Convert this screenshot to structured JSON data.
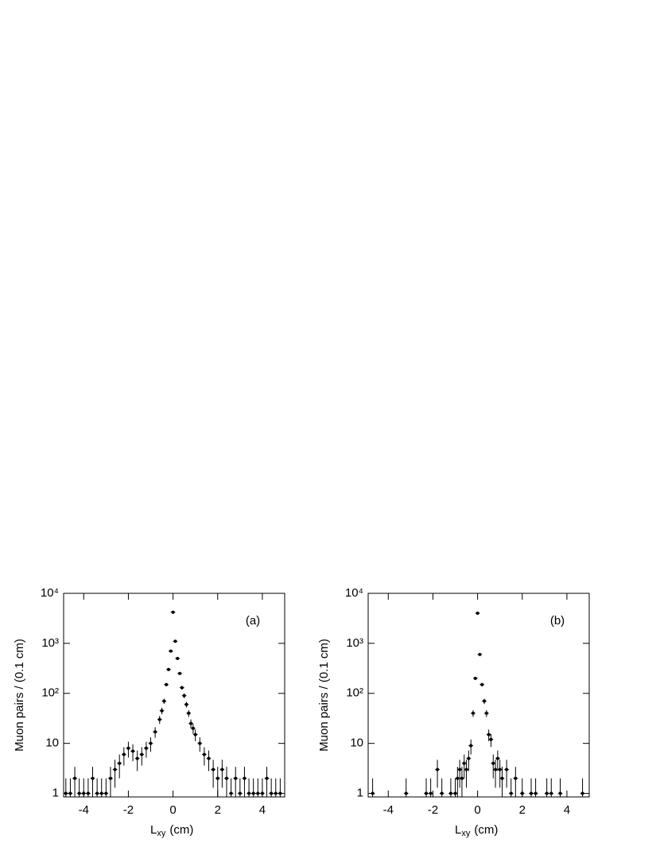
{
  "chart_data": [
    {
      "type": "scatter",
      "annotation": "(a)",
      "y_label": "Muon pairs / (0.1 cm)",
      "x_label_main": "L",
      "x_label_sub": "xy",
      "x_label_unit": "(cm)",
      "log_y": true,
      "color": "#000000",
      "xlim": [
        -4.9,
        5.0
      ],
      "xticks": [
        -4,
        -2,
        0,
        2,
        4
      ],
      "ylim": [
        0.85,
        10000
      ],
      "yticks": [
        1,
        10,
        {
          "value": 100,
          "label": "10²"
        },
        {
          "value": 1000,
          "label": "10³"
        },
        {
          "value": 10000,
          "label": "10⁴"
        }
      ],
      "x": [
        -4.8,
        -4.6,
        -4.4,
        -4.2,
        -4.0,
        -3.8,
        -3.6,
        -3.4,
        -3.2,
        -3.0,
        -2.8,
        -2.6,
        -2.4,
        -2.2,
        -2.0,
        -1.8,
        -1.6,
        -1.4,
        -1.2,
        -1.0,
        -0.8,
        -0.6,
        -0.5,
        -0.4,
        -0.3,
        -0.2,
        -0.1,
        0.0,
        0.1,
        0.2,
        0.3,
        0.4,
        0.5,
        0.6,
        0.7,
        0.8,
        0.9,
        1.0,
        1.2,
        1.4,
        1.6,
        1.8,
        2.0,
        2.2,
        2.4,
        2.6,
        2.8,
        3.0,
        3.2,
        3.4,
        3.6,
        3.8,
        4.0,
        4.2,
        4.4,
        4.6,
        4.8
      ],
      "values": [
        1,
        1,
        2,
        1,
        1,
        1,
        2,
        1,
        1,
        1,
        2,
        3,
        4,
        6,
        8,
        7,
        5,
        6,
        8,
        10,
        17,
        30,
        45,
        70,
        150,
        300,
        700,
        4200,
        1100,
        500,
        250,
        130,
        90,
        60,
        40,
        25,
        20,
        15,
        10,
        6,
        5,
        3,
        2,
        3,
        2,
        1,
        2,
        1,
        2,
        1,
        1,
        1,
        1,
        2,
        1,
        1,
        1
      ],
      "errors": [
        1,
        1,
        1.4,
        1,
        1,
        1,
        1.4,
        1,
        1,
        1,
        1.4,
        1.7,
        2,
        2.4,
        2.8,
        2.6,
        2.2,
        2.4,
        2.8,
        3.2,
        4.1,
        5.5,
        6.7,
        8.4,
        12,
        17,
        26,
        65,
        33,
        22,
        16,
        11,
        9.5,
        7.7,
        6.3,
        5,
        4.5,
        3.9,
        3.2,
        2.4,
        2.2,
        1.7,
        1.4,
        1.7,
        1.4,
        1,
        1.4,
        1,
        1.4,
        1,
        1,
        1,
        1,
        1.4,
        1,
        1,
        1
      ]
    },
    {
      "type": "scatter",
      "annotation": "(b)",
      "y_label": "Muon pairs / (0.1 cm)",
      "x_label_main": "L",
      "x_label_sub": "xy",
      "x_label_unit": "(cm)",
      "log_y": true,
      "color": "#000000",
      "xlim": [
        -4.9,
        5.0
      ],
      "xticks": [
        -4,
        -2,
        0,
        2,
        4
      ],
      "ylim": [
        0.85,
        10000
      ],
      "yticks": [
        1,
        10,
        {
          "value": 100,
          "label": "10²"
        },
        {
          "value": 1000,
          "label": "10³"
        },
        {
          "value": 10000,
          "label": "10⁴"
        }
      ],
      "x": [
        -4.7,
        -3.2,
        -2.3,
        -2.1,
        -1.8,
        -1.6,
        -1.2,
        -1.0,
        -0.9,
        -0.8,
        -0.7,
        -0.6,
        -0.5,
        -0.4,
        -0.3,
        -0.2,
        -0.1,
        0.0,
        0.1,
        0.2,
        0.3,
        0.4,
        0.5,
        0.6,
        0.7,
        0.8,
        0.9,
        1.0,
        1.1,
        1.3,
        1.5,
        1.7,
        2.0,
        2.4,
        2.6,
        3.1,
        3.3,
        3.7,
        4.7
      ],
      "values": [
        1,
        1,
        1,
        1,
        3,
        1,
        1,
        1,
        2,
        3,
        2,
        4,
        3,
        5,
        9,
        40,
        200,
        4000,
        600,
        150,
        70,
        40,
        15,
        12,
        4,
        3,
        5,
        3,
        2,
        3,
        1,
        2,
        1,
        1,
        1,
        1,
        1,
        1,
        1
      ],
      "errors": [
        1,
        1,
        1,
        1,
        1.7,
        1,
        1,
        1,
        1.4,
        1.7,
        1.4,
        2,
        1.7,
        2.2,
        3,
        6.3,
        14,
        63,
        24,
        12,
        8.4,
        6.3,
        3.9,
        3.5,
        2,
        1.7,
        2.2,
        1.7,
        1.4,
        1.7,
        1,
        1.4,
        1,
        1,
        1,
        1,
        1,
        1,
        1
      ]
    }
  ]
}
